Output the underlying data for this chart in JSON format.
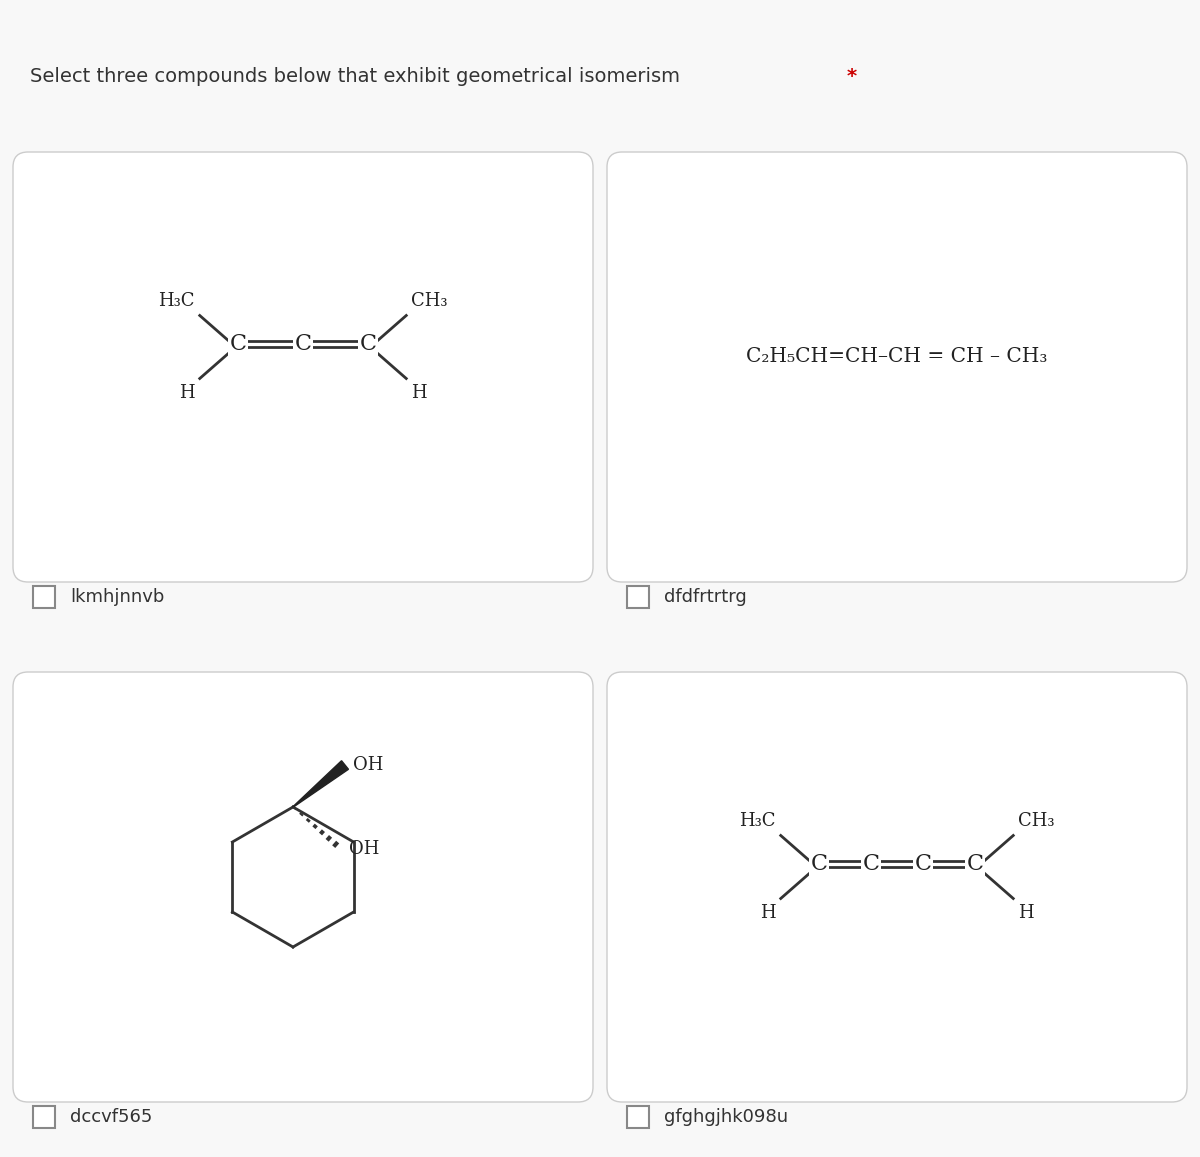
{
  "title": "Select three compounds below that exhibit geometrical isomerism",
  "title_color": "#333333",
  "asterisk_color": "#cc0000",
  "background_color": "#f8f8f8",
  "card_background": "#ffffff",
  "card_border_color": "#cccccc",
  "checkbox_color": "#ffffff",
  "checkbox_border": "#888888",
  "label1": "lkmhjnnvb",
  "label2": "dfdfrtrtrg",
  "label3": "dccvf565",
  "label4": "gfghgjhk098u",
  "label_color": "#333333",
  "label_fontsize": 13
}
